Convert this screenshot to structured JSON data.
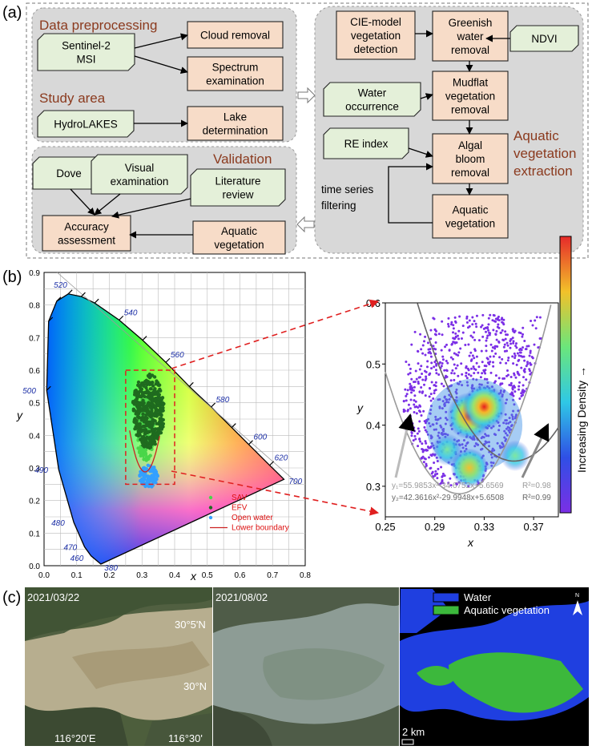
{
  "panels": {
    "a": "(a)",
    "b": "(b)",
    "c": "(c)"
  },
  "flowchart": {
    "sections": {
      "preprocessing": "Data preprocessing",
      "study_area": "Study area",
      "validation": "Validation",
      "extraction": [
        "Aquatic",
        "vegetation",
        "extraction"
      ],
      "time_series": [
        "time series",
        "filtering"
      ]
    },
    "boxes": {
      "sentinel": [
        "Sentinel-2",
        "MSI"
      ],
      "cloud": [
        "Cloud removal"
      ],
      "spectrum": [
        "Spectrum",
        "examination"
      ],
      "hydrolakes": [
        "HydroLAKES"
      ],
      "lake": [
        "Lake",
        "determination"
      ],
      "cie": [
        "CIE-model",
        "vegetation",
        "detection"
      ],
      "greenish": [
        "Greenish",
        "water",
        "removal"
      ],
      "ndvi": [
        "NDVI"
      ],
      "water_occ": [
        "Water",
        "occurrence"
      ],
      "mudflat": [
        "Mudflat",
        "vegetation",
        "removal"
      ],
      "re_index": [
        "RE index"
      ],
      "algal": [
        "Algal",
        "bloom",
        "removal"
      ],
      "aquatic_veg_ext": [
        "Aquatic",
        "vegetation"
      ],
      "dove": [
        "Dove"
      ],
      "visual": [
        "Visual",
        "examination"
      ],
      "literature": [
        "Literature",
        "review"
      ],
      "accuracy": [
        "Accuracy",
        "assessment"
      ],
      "aquatic_veg_val": [
        "Aquatic",
        "vegetation"
      ]
    }
  },
  "chart_data": [
    {
      "type": "scatter",
      "title": "",
      "xlabel": "x",
      "ylabel": "y",
      "xlim": [
        0,
        0.8
      ],
      "ylim": [
        0,
        0.9
      ],
      "x_ticks": [
        "0.0",
        "0.1",
        "0.2",
        "0.3",
        "0.4",
        "0.5",
        "0.6",
        "0.7",
        "0.8"
      ],
      "y_ticks": [
        "0.0",
        "0.1",
        "0.2",
        "0.3",
        "0.4",
        "0.5",
        "0.6",
        "0.7",
        "0.8",
        "0.9"
      ],
      "wavelength_labels": [
        {
          "label": "380",
          "x": 0.17,
          "y": 0.005
        },
        {
          "label": "460",
          "x": 0.144,
          "y": 0.03
        },
        {
          "label": "470",
          "x": 0.124,
          "y": 0.058
        },
        {
          "label": "480",
          "x": 0.091,
          "y": 0.133
        },
        {
          "label": "490",
          "x": 0.045,
          "y": 0.295
        },
        {
          "label": "500",
          "x": 0.008,
          "y": 0.538
        },
        {
          "label": "520",
          "x": 0.074,
          "y": 0.834
        },
        {
          "label": "540",
          "x": 0.23,
          "y": 0.754
        },
        {
          "label": "560",
          "x": 0.373,
          "y": 0.624
        },
        {
          "label": "580",
          "x": 0.512,
          "y": 0.487
        },
        {
          "label": "600",
          "x": 0.627,
          "y": 0.372
        },
        {
          "label": "620",
          "x": 0.691,
          "y": 0.308
        },
        {
          "label": "700",
          "x": 0.735,
          "y": 0.265
        }
      ],
      "legend": {
        "placement": "bottom-right",
        "entries": [
          "SAV",
          "EFV",
          "Open water",
          "Lower boundary"
        ]
      },
      "series": [
        {
          "name": "SAV",
          "color": "#49d649",
          "region": {
            "x": [
              0.27,
              0.35
            ],
            "y": [
              0.32,
              0.52
            ]
          }
        },
        {
          "name": "EFV",
          "color": "#1f6b1f",
          "region": {
            "x": [
              0.25,
              0.39
            ],
            "y": [
              0.36,
              0.59
            ]
          }
        },
        {
          "name": "Open water",
          "color": "#33a0ff",
          "region": {
            "x": [
              0.28,
              0.36
            ],
            "y": [
              0.24,
              0.31
            ]
          }
        },
        {
          "name": "Lower boundary",
          "color": "#cc2222",
          "type": "line"
        }
      ],
      "zoom_box": {
        "x": [
          0.25,
          0.4
        ],
        "y": [
          0.25,
          0.6
        ]
      }
    },
    {
      "type": "heatmap",
      "title": "",
      "xlabel": "x",
      "ylabel": "y",
      "xlim": [
        0.25,
        0.39
      ],
      "ylim": [
        0.25,
        0.6
      ],
      "x_ticks": [
        "0.25",
        "0.29",
        "0.33",
        "0.37"
      ],
      "y_ticks": [
        "0.3",
        "0.4",
        "0.5",
        "0.6"
      ],
      "colorbar_label": "Increasing Density →",
      "density_peaks": [
        {
          "x": 0.318,
          "y": 0.415,
          "level": 1.0
        },
        {
          "x": 0.33,
          "y": 0.43,
          "level": 0.95
        },
        {
          "x": 0.318,
          "y": 0.33,
          "level": 0.7
        },
        {
          "x": 0.3,
          "y": 0.36,
          "level": 0.45
        },
        {
          "x": 0.355,
          "y": 0.35,
          "level": 0.4
        }
      ],
      "curves": [
        {
          "equation": "y₁=55.9853x²-34.6752x+5.6569",
          "r2": "R²=0.98",
          "a": 55.9853,
          "b": -34.6752,
          "c": 5.6569,
          "color": "#9a9a9a"
        },
        {
          "equation": "y₂=42.3616x²-29.9948x+5.6508",
          "r2": "R²=0.99",
          "a": 42.3616,
          "b": -29.9948,
          "c": 5.6508,
          "color": "#666666"
        }
      ]
    }
  ],
  "maps": {
    "dates": [
      "2021/03/22",
      "2021/08/02"
    ],
    "coords": {
      "lat1": "30°5'N",
      "lat2": "30°N",
      "lon1": "116°20'E",
      "lon2": "116°30'"
    },
    "legend": [
      "Water",
      "Aquatic vegetation"
    ],
    "legend_colors": [
      "#1f3fe0",
      "#3cb83c"
    ],
    "north": "N",
    "scale": "2 km"
  }
}
